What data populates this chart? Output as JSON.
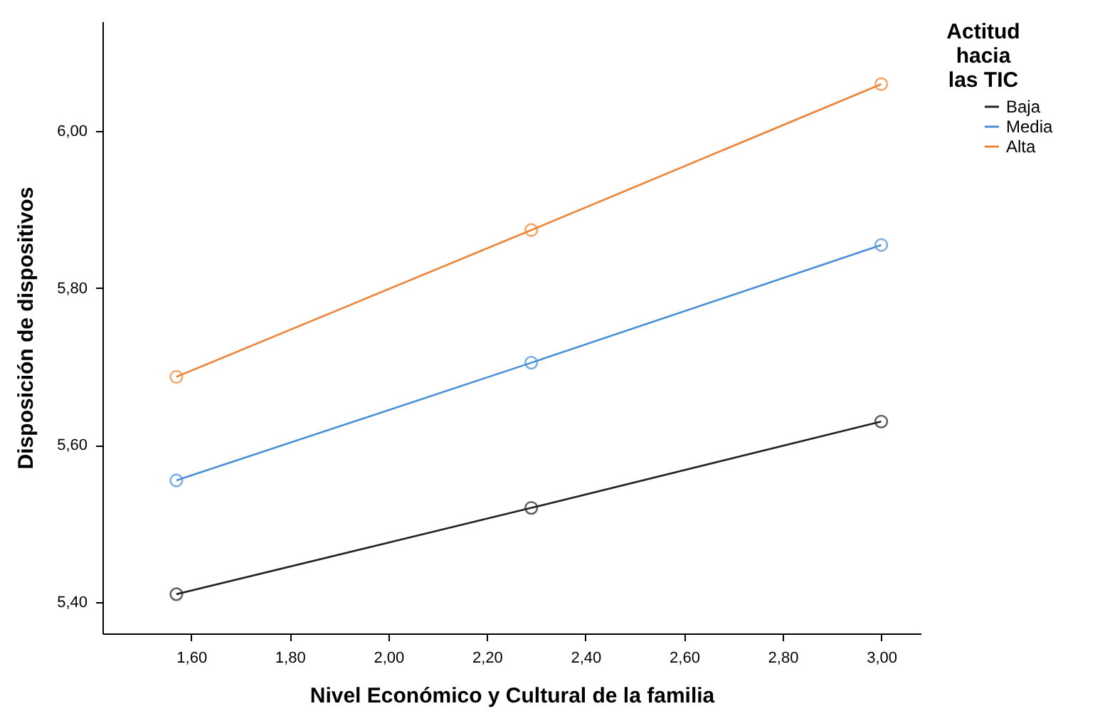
{
  "chart_data": {
    "type": "line",
    "xlabel": "Nivel Económico y Cultural de la familia",
    "ylabel": "Disposición de dispositivos",
    "legend_title": "Actitud hacia las TIC",
    "legend": "top right",
    "marker": "circle",
    "line_style": "solid",
    "grid": false,
    "x": [
      1.57,
      2.29,
      3.0
    ],
    "xlim": [
      1.42,
      3.08
    ],
    "xticks": [
      {
        "value": 1.6,
        "label": "1,60"
      },
      {
        "value": 1.8,
        "label": "1,80"
      },
      {
        "value": 2.0,
        "label": "2,00"
      },
      {
        "value": 2.2,
        "label": "2,20"
      },
      {
        "value": 2.4,
        "label": "2,40"
      },
      {
        "value": 2.6,
        "label": "2,60"
      },
      {
        "value": 2.8,
        "label": "2,80"
      },
      {
        "value": 3.0,
        "label": "3,00"
      }
    ],
    "ylim": [
      5.36,
      6.14
    ],
    "yticks": [
      {
        "value": 5.4,
        "label": "5,40"
      },
      {
        "value": 5.6,
        "label": "5,60"
      },
      {
        "value": 5.8,
        "label": "5,80"
      },
      {
        "value": 6.0,
        "label": "6,00"
      }
    ],
    "series": [
      {
        "name": "Baja",
        "color": "#222222",
        "values": [
          5.41,
          5.52,
          5.63
        ]
      },
      {
        "name": "Media",
        "color": "#4a8fd6",
        "values": [
          5.555,
          5.705,
          5.855
        ]
      },
      {
        "name": "Alta",
        "color": "#ee8336",
        "values": [
          5.687,
          5.874,
          6.06
        ]
      }
    ]
  }
}
